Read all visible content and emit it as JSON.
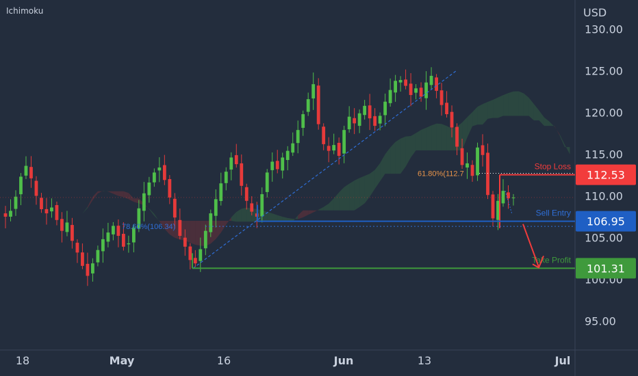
{
  "indicator_label": "Ichimoku",
  "colors": {
    "background": "#232d3d",
    "up": "#4fbf4a",
    "down": "#e63a3a",
    "stop": "#f23c3c",
    "entry": "#1f5fc4",
    "profit": "#3f9a3c",
    "axis_text": "#c9d1de",
    "fib": "#e8944a"
  },
  "chart_data": {
    "type": "candlestick",
    "currency": "USD",
    "y_ticks": [
      "130.00",
      "125.00",
      "120.00",
      "115.00",
      "110.00",
      "105.00",
      "100.00",
      "95.00"
    ],
    "ylim": [
      91.5,
      133.5
    ],
    "x_ticks": [
      "18",
      "May",
      "16",
      "Jun",
      "13",
      "Jul"
    ],
    "levels": [
      {
        "label": "Stop Loss",
        "value": 112.53,
        "price_label": "112.53"
      },
      {
        "label": "Sell Entry",
        "value": 106.95,
        "price_label": "106.95"
      },
      {
        "label": "Take Profit",
        "value": 101.31,
        "price_label": "101.31"
      }
    ],
    "fib_labels": [
      {
        "text": "61.80%(112.7",
        "value": 112.7
      },
      {
        "text": "78.60%(106.34)",
        "value": 106.34
      }
    ],
    "current_price": 109.8,
    "trendline": {
      "from": [
        101.3
      ],
      "to": [
        125.1
      ]
    },
    "close_series": [
      107.5,
      108.2,
      109.9,
      112.3,
      113.6,
      112.1,
      110.0,
      108.4,
      107.9,
      108.6,
      107.1,
      105.8,
      106.8,
      104.6,
      103.2,
      101.6,
      100.4,
      101.9,
      103.5,
      104.8,
      105.6,
      106.4,
      105.2,
      103.9,
      104.3,
      106.2,
      108.5,
      110.3,
      111.6,
      112.8,
      113.4,
      111.9,
      109.8,
      107.4,
      105.2,
      103.9,
      102.3,
      101.9,
      103.6,
      105.8,
      107.9,
      109.6,
      111.5,
      112.9,
      114.6,
      113.8,
      111.2,
      109.4,
      108.1,
      107.5,
      110.2,
      112.8,
      114.1,
      113.2,
      114.6,
      115.4,
      116.3,
      117.9,
      119.8,
      121.6,
      123.4,
      118.6,
      116.2,
      115.4,
      116.1,
      114.8,
      117.9,
      119.5,
      118.7,
      119.9,
      120.8,
      119.3,
      118.4,
      119.6,
      121.3,
      122.7,
      123.8,
      123.9,
      123.2,
      122.1,
      122.9,
      121.9,
      123.6,
      124.4,
      122.6,
      120.9,
      119.8,
      118.2,
      115.9,
      113.7,
      113.9,
      112.4,
      115.8,
      114.9,
      110.1,
      107.3,
      109.4,
      110.6,
      109.7,
      109.8
    ]
  }
}
